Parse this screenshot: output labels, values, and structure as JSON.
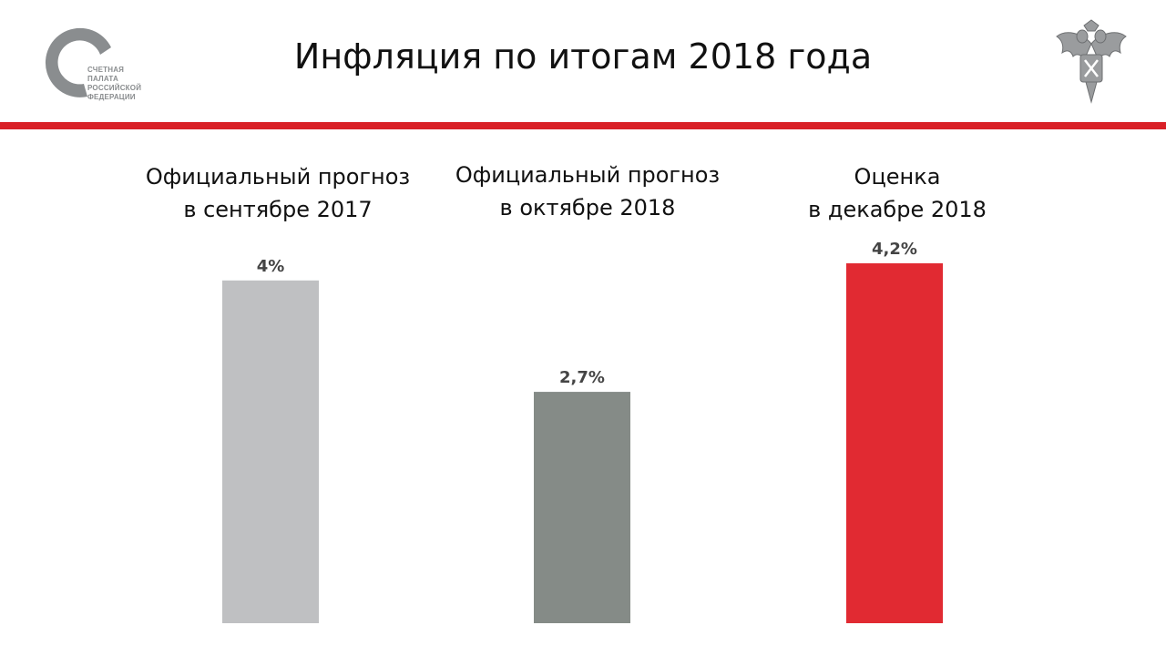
{
  "header": {
    "title": "Инфляция по итогам 2018 года",
    "logo": {
      "lines": [
        "СЧЕТНАЯ",
        "ПАЛАТА",
        "РОССИЙСКОЙ",
        "ФЕДЕРАЦИИ"
      ],
      "color": "#8a8d8f"
    },
    "emblem_icon": "double-headed-eagle-emblem"
  },
  "accent_color": "#d92027",
  "chart_data": {
    "type": "bar",
    "title": "Инфляция по итогам 2018 года",
    "categories": [
      {
        "line1": "Официальный прогноз",
        "line2": "в сентябре 2017"
      },
      {
        "line1": "Официальный прогноз",
        "line2": "в октябре 2018"
      },
      {
        "line1": "Оценка",
        "line2": "в декабре 2018"
      }
    ],
    "values": [
      4,
      2.7,
      4.2
    ],
    "value_labels": [
      "4%",
      "2,7%",
      "4,2%"
    ],
    "colors": [
      "#bfc0c2",
      "#858b87",
      "#e12a32"
    ],
    "ylim": [
      0,
      4.2
    ],
    "xlabel": "",
    "ylabel": "",
    "grid": false
  }
}
